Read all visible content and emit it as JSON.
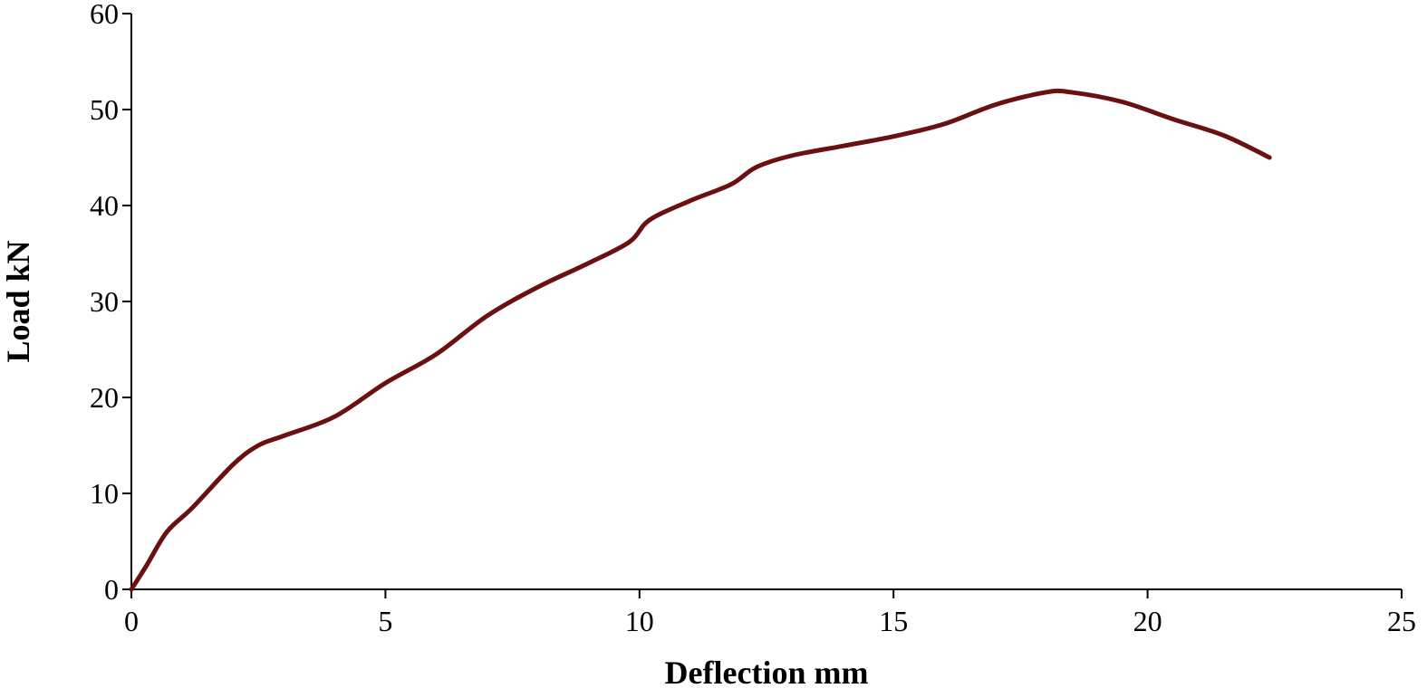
{
  "chart_data": {
    "type": "line",
    "x_label": "Deflection mm",
    "y_label": "Load kN",
    "x": [
      0,
      0.3,
      0.7,
      1.2,
      2,
      2.5,
      3,
      4,
      5,
      6,
      7,
      8,
      9,
      9.8,
      10.2,
      11,
      11.8,
      12.3,
      13,
      14,
      15,
      16,
      17,
      18,
      18.5,
      19.5,
      20.5,
      21.5,
      22.4
    ],
    "series": [
      {
        "color": "#6b1010",
        "values": [
          0,
          2.5,
          6,
          8.5,
          13,
          15,
          16,
          18,
          21.5,
          24.5,
          28.5,
          31.5,
          34,
          36.2,
          38.5,
          40.5,
          42.2,
          44,
          45.2,
          46.2,
          47.2,
          48.5,
          50.5,
          51.8,
          51.8,
          50.8,
          49,
          47.3,
          45
        ]
      }
    ],
    "xlim": [
      0,
      25
    ],
    "xticks": [
      0,
      5,
      10,
      15,
      20,
      25
    ],
    "ylim": [
      0,
      60
    ],
    "yticks": [
      0,
      10,
      20,
      30,
      40,
      50,
      60
    ]
  }
}
